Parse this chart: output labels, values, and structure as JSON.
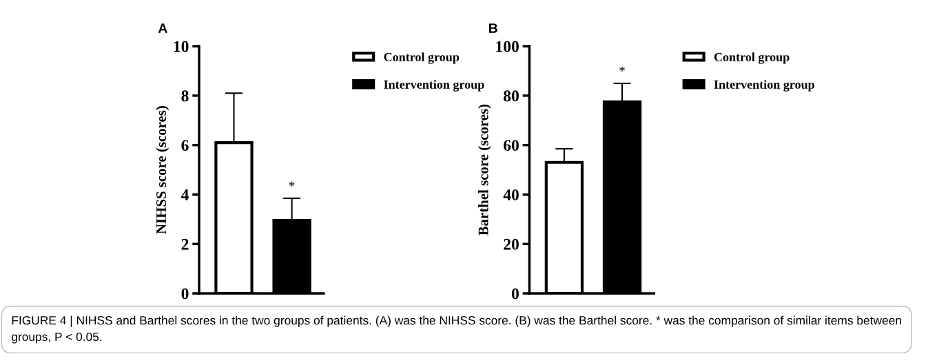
{
  "chart_data": [
    {
      "type": "bar",
      "title": "A",
      "ylabel": "NIHSS score (scores)",
      "categories": [
        null,
        null
      ],
      "series": [
        {
          "name": "Control group",
          "color": "#ffffff",
          "values": [
            6.1,
            null
          ],
          "errors": [
            [
              6.1,
              8.1
            ],
            null
          ]
        },
        {
          "name": "Intervention group",
          "color": "#000000",
          "values": [
            null,
            2.95
          ],
          "errors": [
            null,
            [
              2.95,
              3.85
            ]
          ]
        }
      ],
      "ylim": [
        0,
        10
      ],
      "yticks": [
        0,
        2,
        4,
        6,
        8,
        10
      ],
      "legend": "right",
      "grid": false,
      "annotations": [
        "*",
        "FIGURE 4 | NIHSS and Barthel scores in the two groups of patients. (A) was the NIHSS score. (B) was the Barthel score. * was the comparison of similar items between groups, P < 0.05."
      ]
    },
    {
      "type": "bar",
      "title": "B",
      "ylabel": "Barthel score (scores)",
      "categories": [
        null,
        null
      ],
      "series": [
        {
          "name": "Control group",
          "color": "#ffffff",
          "values": [
            53,
            null
          ],
          "errors": [
            [
              53,
              58.5
            ],
            null
          ]
        },
        {
          "name": "Intervention group",
          "color": "#000000",
          "values": [
            null,
            77.5
          ],
          "errors": [
            null,
            [
              77.5,
              85
            ]
          ]
        }
      ],
      "ylim": [
        0,
        100
      ],
      "yticks": [
        0,
        20,
        40,
        60,
        80,
        100
      ],
      "legend": "right",
      "grid": false,
      "annotations": [
        "*"
      ]
    }
  ]
}
